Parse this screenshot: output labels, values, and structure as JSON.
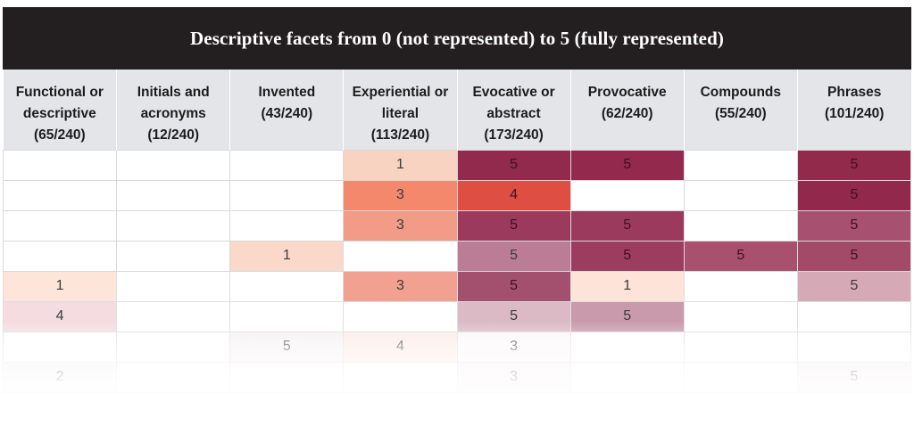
{
  "chart_data": {
    "type": "table",
    "title": "Descriptive facets from 0 (not represented) to 5 (fully represented)",
    "columns": [
      {
        "name": "Functional or descriptive",
        "count": "(65/240)"
      },
      {
        "name": "Initials and acronyms",
        "count": "(12/240)"
      },
      {
        "name": "Invented",
        "count": "(43/240)"
      },
      {
        "name": "Experiential or literal",
        "count": "(113/240)"
      },
      {
        "name": "Evocative or abstract",
        "count": "(173/240)"
      },
      {
        "name": "Provocative",
        "count": "(62/240)"
      },
      {
        "name": "Compounds",
        "count": "(55/240)"
      },
      {
        "name": "Phrases",
        "count": "(101/240)"
      }
    ],
    "rows": [
      [
        null,
        null,
        null,
        1,
        5,
        5,
        null,
        5
      ],
      [
        null,
        null,
        null,
        3,
        4,
        null,
        null,
        5
      ],
      [
        null,
        null,
        null,
        3,
        5,
        5,
        null,
        5
      ],
      [
        null,
        null,
        1,
        null,
        5,
        5,
        5,
        5
      ],
      [
        1,
        null,
        null,
        3,
        5,
        1,
        null,
        5
      ],
      [
        4,
        null,
        null,
        null,
        5,
        5,
        null,
        null
      ],
      [
        null,
        null,
        5,
        4,
        3,
        null,
        null,
        null
      ],
      [
        2,
        null,
        null,
        null,
        3,
        null,
        null,
        5
      ]
    ],
    "cell_colors": [
      [
        null,
        null,
        null,
        "#f9d3c2",
        "#912a4c",
        "#93294c",
        null,
        "#922a4c"
      ],
      [
        null,
        null,
        null,
        "#f3886c",
        "#de4e42",
        null,
        null,
        "#92294c"
      ],
      [
        null,
        null,
        null,
        "#f29b86",
        "#9b3a5c",
        "#9b3a5c",
        null,
        "#a7506f"
      ],
      [
        null,
        null,
        "#fad9cb",
        null,
        "#ba7d95",
        "#9c3d5f",
        "#a9506f",
        "#a34a69"
      ],
      [
        "#fde5da",
        null,
        null,
        "#f2a090",
        "#a3506f",
        "#fde3d8",
        null,
        "#d6a9b7"
      ],
      [
        "#f4dce1",
        null,
        null,
        null,
        "#dbbac6",
        "#c99aac",
        null,
        null
      ],
      [
        null,
        null,
        "#f6f1f2",
        "#fce9e4",
        "#fbf7f8",
        null,
        null,
        null
      ],
      [
        "#f8f4f5",
        null,
        null,
        null,
        "#f7eef1",
        null,
        null,
        "#f5eaee"
      ]
    ]
  }
}
